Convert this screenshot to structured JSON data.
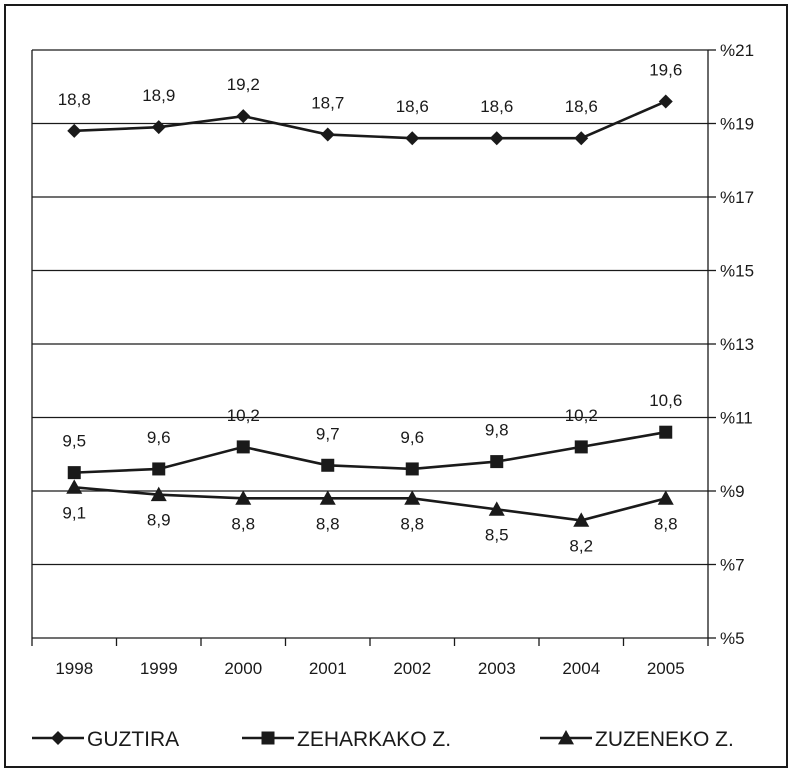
{
  "chart_data": {
    "type": "line",
    "title": "",
    "xlabel": "",
    "ylabel": "",
    "categories": [
      "1998",
      "1999",
      "2000",
      "2001",
      "2002",
      "2003",
      "2004",
      "2005"
    ],
    "y_axis": {
      "position": "right",
      "ylim": [
        5,
        21
      ],
      "ticks": [
        5,
        7,
        9,
        11,
        13,
        15,
        17,
        19,
        21
      ],
      "tick_labels": [
        "%5",
        "%7",
        "%9",
        "%11",
        "%13",
        "%15",
        "%17",
        "%19",
        "%21"
      ]
    },
    "grid": true,
    "legend_position": "bottom",
    "series": [
      {
        "name": "GUZTIRA",
        "marker": "diamond",
        "values": [
          18.8,
          18.9,
          19.2,
          18.7,
          18.6,
          18.6,
          18.6,
          19.6
        ],
        "labels": [
          "18,8",
          "18,9",
          "19,2",
          "18,7",
          "18,6",
          "18,6",
          "18,6",
          "19,6"
        ],
        "label_position": "above",
        "color": "#1a1a1a"
      },
      {
        "name": "ZEHARKAKO Z.",
        "marker": "square",
        "values": [
          9.5,
          9.6,
          10.2,
          9.7,
          9.6,
          9.8,
          10.2,
          10.6
        ],
        "labels": [
          "9,5",
          "9,6",
          "10,2",
          "9,7",
          "9,6",
          "9,8",
          "10,2",
          "10,6"
        ],
        "label_position": "above",
        "color": "#1a1a1a"
      },
      {
        "name": "ZUZENEKO Z.",
        "marker": "triangle",
        "values": [
          9.1,
          8.9,
          8.8,
          8.8,
          8.8,
          8.5,
          8.2,
          8.8
        ],
        "labels": [
          "9,1",
          "8,9",
          "8,8",
          "8,8",
          "8,8",
          "8,5",
          "8,2",
          "8,8"
        ],
        "label_position": "below",
        "color": "#1a1a1a"
      }
    ]
  }
}
